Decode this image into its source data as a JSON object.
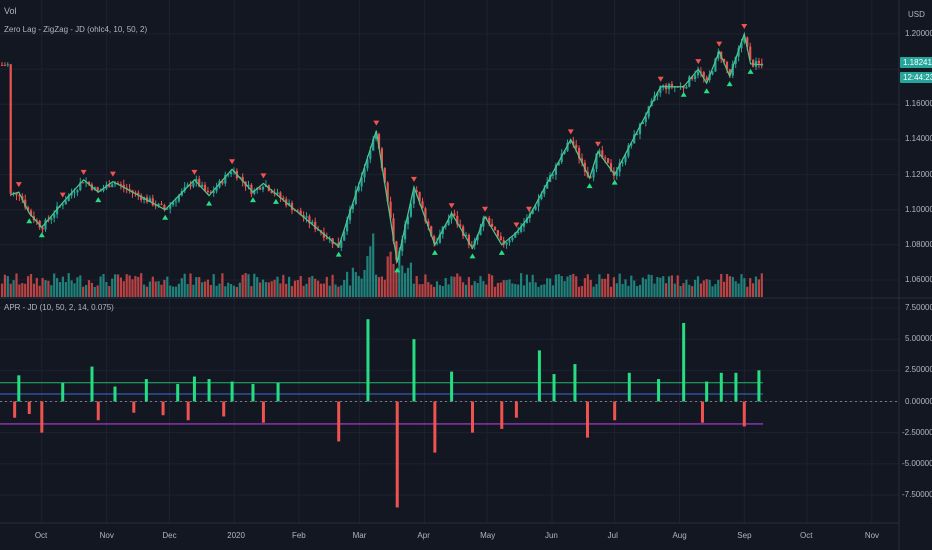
{
  "legend": {
    "vol": "Vol",
    "main_indicator": "Zero Lag - ZigZag - JD (ohlc4, 10, 50, 2)",
    "sub_indicator": "APR - JD (10, 50, 2, 14, 0.075)"
  },
  "price_axis": {
    "currency": "USD",
    "ticks": [
      "1.20000",
      "1.16000",
      "1.14000",
      "1.12000",
      "1.10000",
      "1.08000",
      "1.06000"
    ],
    "last_price": "1.18241",
    "countdown": "12:44:23"
  },
  "osc_axis": {
    "ticks": [
      "7.50000",
      "5.00000",
      "2.50000",
      "0.00000",
      "-2.50000",
      "-5.00000",
      "-7.50000"
    ]
  },
  "time_axis": [
    "Oct",
    "Nov",
    "Dec",
    "2020",
    "Feb",
    "Mar",
    "Apr",
    "May",
    "Jun",
    "Jul",
    "Aug",
    "Sep",
    "Oct",
    "Nov"
  ],
  "colors": {
    "background": "#131722",
    "up": "#26a69a",
    "down": "#ef5350",
    "zigzag": "#4ec88a",
    "grid": "#1e2230",
    "positive_bar": "#26de81",
    "negative_bar": "#ef5350",
    "purple_line": "#b03dd6",
    "blue_line": "#3d6bd6"
  },
  "chart_data": {
    "type": "line",
    "main_series_name": "",
    "zigzag_points": [
      [
        "2019-09-16",
        1.1085
      ],
      [
        "2019-09-20",
        1.11
      ],
      [
        "2019-09-25",
        1.098
      ],
      [
        "2019-10-01",
        1.09
      ],
      [
        "2019-10-11",
        1.104
      ],
      [
        "2019-10-21",
        1.117
      ],
      [
        "2019-10-28",
        1.11
      ],
      [
        "2019-11-04",
        1.116
      ],
      [
        "2019-11-29",
        1.1
      ],
      [
        "2019-12-13",
        1.117
      ],
      [
        "2019-12-20",
        1.108
      ],
      [
        "2019-12-31",
        1.123
      ],
      [
        "2020-01-10",
        1.11
      ],
      [
        "2020-01-15",
        1.115
      ],
      [
        "2020-01-21",
        1.109
      ],
      [
        "2020-02-20",
        1.079
      ],
      [
        "2020-03-09",
        1.145
      ],
      [
        "2020-03-19",
        1.07
      ],
      [
        "2020-03-27",
        1.113
      ],
      [
        "2020-04-06",
        1.08
      ],
      [
        "2020-04-14",
        1.098
      ],
      [
        "2020-04-24",
        1.078
      ],
      [
        "2020-04-30",
        1.096
      ],
      [
        "2020-05-08",
        1.08
      ],
      [
        "2020-05-15",
        1.087
      ],
      [
        "2020-05-21",
        1.096
      ],
      [
        "2020-06-10",
        1.14
      ],
      [
        "2020-06-19",
        1.118
      ],
      [
        "2020-06-23",
        1.133
      ],
      [
        "2020-07-01",
        1.12
      ],
      [
        "2020-07-23",
        1.17
      ],
      [
        "2020-08-03",
        1.17
      ],
      [
        "2020-08-10",
        1.18
      ],
      [
        "2020-08-14",
        1.172
      ],
      [
        "2020-08-20",
        1.19
      ],
      [
        "2020-08-25",
        1.176
      ],
      [
        "2020-09-01",
        1.2
      ],
      [
        "2020-09-04",
        1.183
      ],
      [
        "2020-09-10",
        1.1824
      ]
    ],
    "price_range": [
      1.05,
      1.21
    ],
    "oscillator": {
      "range": [
        -8.5,
        7.5
      ],
      "positive_spikes": [
        [
          "2019-09-20",
          2.1
        ],
        [
          "2019-10-11",
          1.5
        ],
        [
          "2019-10-25",
          2.8
        ],
        [
          "2019-11-05",
          1.2
        ],
        [
          "2019-11-20",
          1.8
        ],
        [
          "2019-12-05",
          1.4
        ],
        [
          "2019-12-13",
          2.0
        ],
        [
          "2019-12-20",
          1.8
        ],
        [
          "2019-12-31",
          1.6
        ],
        [
          "2020-01-10",
          1.4
        ],
        [
          "2020-01-22",
          1.5
        ],
        [
          "2020-03-05",
          6.6
        ],
        [
          "2020-03-27",
          5.0
        ],
        [
          "2020-04-14",
          2.4
        ],
        [
          "2020-05-26",
          4.1
        ],
        [
          "2020-06-02",
          2.2
        ],
        [
          "2020-06-12",
          3.0
        ],
        [
          "2020-07-08",
          2.3
        ],
        [
          "2020-07-22",
          1.8
        ],
        [
          "2020-08-03",
          6.3
        ],
        [
          "2020-08-14",
          1.6
        ],
        [
          "2020-08-21",
          2.3
        ],
        [
          "2020-08-28",
          2.3
        ],
        [
          "2020-09-08",
          2.5
        ]
      ],
      "negative_spikes": [
        [
          "2019-09-18",
          -1.3
        ],
        [
          "2019-09-25",
          -1.0
        ],
        [
          "2019-10-01",
          -2.5
        ],
        [
          "2019-10-28",
          -1.5
        ],
        [
          "2019-11-14",
          -0.9
        ],
        [
          "2019-11-28",
          -1.1
        ],
        [
          "2019-12-10",
          -1.5
        ],
        [
          "2019-12-27",
          -1.2
        ],
        [
          "2020-01-15",
          -1.7
        ],
        [
          "2020-02-20",
          -3.2
        ],
        [
          "2020-03-19",
          -8.5
        ],
        [
          "2020-04-06",
          -4.1
        ],
        [
          "2020-04-24",
          -2.5
        ],
        [
          "2020-05-08",
          -2.2
        ],
        [
          "2020-05-15",
          -1.3
        ],
        [
          "2020-06-18",
          -2.9
        ],
        [
          "2020-07-01",
          -1.5
        ],
        [
          "2020-08-12",
          -1.7
        ],
        [
          "2020-09-01",
          -2.0
        ]
      ],
      "upper_band": 2.5,
      "lower_band": -2.6
    }
  }
}
